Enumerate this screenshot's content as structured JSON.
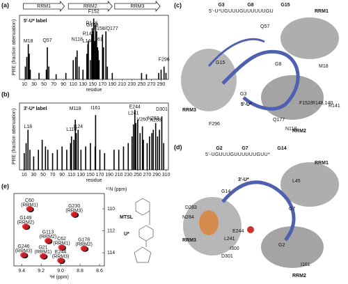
{
  "figure": {
    "panel_labels": [
      "(a)",
      "(b)",
      "(c)",
      "(d)",
      "(e)"
    ],
    "domains": [
      "RRM1",
      "RRM2",
      "RRM3"
    ],
    "mtsl": "MTSL",
    "u_star": "U*"
  },
  "chart_data": [
    {
      "type": "bar",
      "label": "5'-U* label",
      "xlabel": "residue",
      "ylabel": "PRE (fraction attenuation)",
      "color": "#000000",
      "xlim": [
        0,
        305
      ],
      "ylim": [
        0,
        1
      ],
      "xticks": [
        10,
        30,
        50,
        70,
        90,
        110,
        130,
        150,
        170,
        190,
        210,
        230,
        250,
        270,
        290
      ],
      "x": [
        12,
        15,
        18,
        20,
        22,
        40,
        55,
        57,
        60,
        75,
        95,
        110,
        115,
        118,
        122,
        130,
        138,
        140,
        141,
        145,
        148,
        149,
        150,
        152,
        154,
        156,
        158,
        160,
        161,
        163,
        170,
        172,
        177,
        180,
        190,
        250,
        260,
        285,
        290,
        296,
        300
      ],
      "values": [
        0.2,
        0.35,
        0.55,
        0.4,
        0.15,
        0.1,
        0.15,
        0.5,
        0.2,
        0.08,
        0.1,
        0.3,
        0.35,
        0.45,
        0.2,
        0.15,
        0.4,
        0.55,
        0.6,
        0.3,
        0.7,
        0.8,
        0.75,
        0.95,
        0.6,
        0.85,
        0.75,
        0.5,
        0.45,
        0.3,
        0.7,
        0.5,
        0.75,
        0.2,
        0.1,
        0.1,
        0.08,
        0.1,
        0.15,
        0.2,
        0.1
      ],
      "annotations": [
        {
          "text": "M18",
          "x": 18
        },
        {
          "text": "Q57",
          "x": 57
        },
        {
          "text": "N118",
          "x": 118
        },
        {
          "text": "L140",
          "x": 140
        },
        {
          "text": "R141",
          "x": 141
        },
        {
          "text": "R148",
          "x": 148
        },
        {
          "text": "G149",
          "x": 149
        },
        {
          "text": "F152",
          "x": 152
        },
        {
          "text": "I161",
          "x": 161
        },
        {
          "text": "F158/Q177",
          "x": 177
        },
        {
          "text": "F296",
          "x": 296
        }
      ]
    },
    {
      "type": "bar",
      "label": "3'-U* label",
      "xlabel": "residue",
      "ylabel": "PRE (fraction attenuation)",
      "color": "#000000",
      "xlim": [
        0,
        315
      ],
      "ylim": [
        0,
        1
      ],
      "xticks": [
        10,
        30,
        50,
        70,
        90,
        110,
        130,
        150,
        170,
        190,
        210,
        230,
        250,
        270,
        290,
        310
      ],
      "x": [
        10,
        14,
        18,
        22,
        30,
        40,
        48,
        55,
        60,
        70,
        80,
        90,
        100,
        108,
        110,
        115,
        118,
        120,
        124,
        130,
        140,
        150,
        160,
        161,
        170,
        180,
        200,
        210,
        220,
        230,
        238,
        241,
        244,
        246,
        250,
        255,
        260,
        262,
        270,
        275,
        280,
        283,
        288,
        292,
        296,
        301,
        305
      ],
      "values": [
        0.25,
        0.4,
        0.6,
        0.3,
        0.2,
        0.3,
        0.45,
        0.35,
        0.3,
        0.25,
        0.3,
        0.35,
        0.3,
        0.4,
        0.5,
        0.45,
        0.75,
        0.55,
        0.6,
        0.3,
        0.35,
        0.4,
        0.35,
        0.82,
        0.3,
        0.25,
        0.3,
        0.3,
        0.35,
        0.4,
        0.5,
        0.68,
        0.9,
        0.7,
        0.75,
        0.55,
        0.65,
        0.45,
        0.4,
        0.5,
        0.55,
        0.6,
        0.7,
        0.5,
        0.6,
        0.8,
        0.4
      ],
      "annotations": [
        {
          "text": "L18",
          "x": 18
        },
        {
          "text": "L110",
          "x": 110
        },
        {
          "text": "M118",
          "x": 118
        },
        {
          "text": "I124",
          "x": 124
        },
        {
          "text": "I161",
          "x": 161
        },
        {
          "text": "L241",
          "x": 241
        },
        {
          "text": "E244",
          "x": 244
        },
        {
          "text": "V260",
          "x": 260
        },
        {
          "text": "N283",
          "x": 283
        },
        {
          "text": "A288",
          "x": 288
        },
        {
          "text": "D301",
          "x": 301
        }
      ]
    },
    {
      "type": "scatter",
      "xlabel": "¹H (ppm)",
      "ylabel": "¹⁵N (ppm)",
      "color": "#e8202a",
      "xlim": [
        9.48,
        8.55
      ],
      "ylim": [
        108.6,
        115.2
      ],
      "xticks": [
        9.4,
        9.2,
        {
          "value": 9,
          "label": "9.0"
        },
        8.8,
        8.6
      ],
      "yticks": [
        110,
        112,
        114
      ],
      "x": [
        9.32,
        9.36,
        8.86,
        9.13,
        8.99,
        8.76,
        9.38,
        9.18,
        9.0
      ],
      "values": [
        110.0,
        111.6,
        110.5,
        112.9,
        113.5,
        113.6,
        114.2,
        114.3,
        114.7
      ],
      "point_labels": [
        [
          "C60",
          "(RRM1)"
        ],
        [
          "G149",
          "(RRM2)"
        ],
        [
          "G230",
          "(RRM3)"
        ],
        [
          "G113",
          "(RRM2)"
        ],
        [
          "C62",
          "(RRM1)"
        ],
        [
          "G178",
          "(RRM2)"
        ],
        [
          "G246",
          "(RRM3)"
        ],
        [
          "G21",
          "(RRM1)"
        ],
        [
          "E244",
          "(RRM3)"
        ]
      ]
    }
  ],
  "panel_c": {
    "sequence": "5'-U*UGUUUGUUUUUUGU",
    "seq_marks": [
      "G3",
      "G8",
      "G15"
    ],
    "labels": [
      "RRM1",
      "RRM2",
      "RRM3",
      "Q57",
      "M18",
      "F152/R148,140",
      "R141",
      "Q177",
      "N118",
      "F296",
      "G15",
      "G8",
      "G3",
      "5'-U*"
    ]
  },
  "panel_d": {
    "sequence": "5'-UGUUUGUUUUUUGUU*",
    "seq_marks": [
      "G2",
      "G7",
      "G14"
    ],
    "labels": [
      "RRM1",
      "RRM2",
      "RRM3",
      "3'-U*",
      "L45",
      "G14",
      "G7",
      "G2",
      "D283",
      "N284",
      "E244",
      "L241",
      "I300",
      "D301",
      "I161"
    ]
  }
}
